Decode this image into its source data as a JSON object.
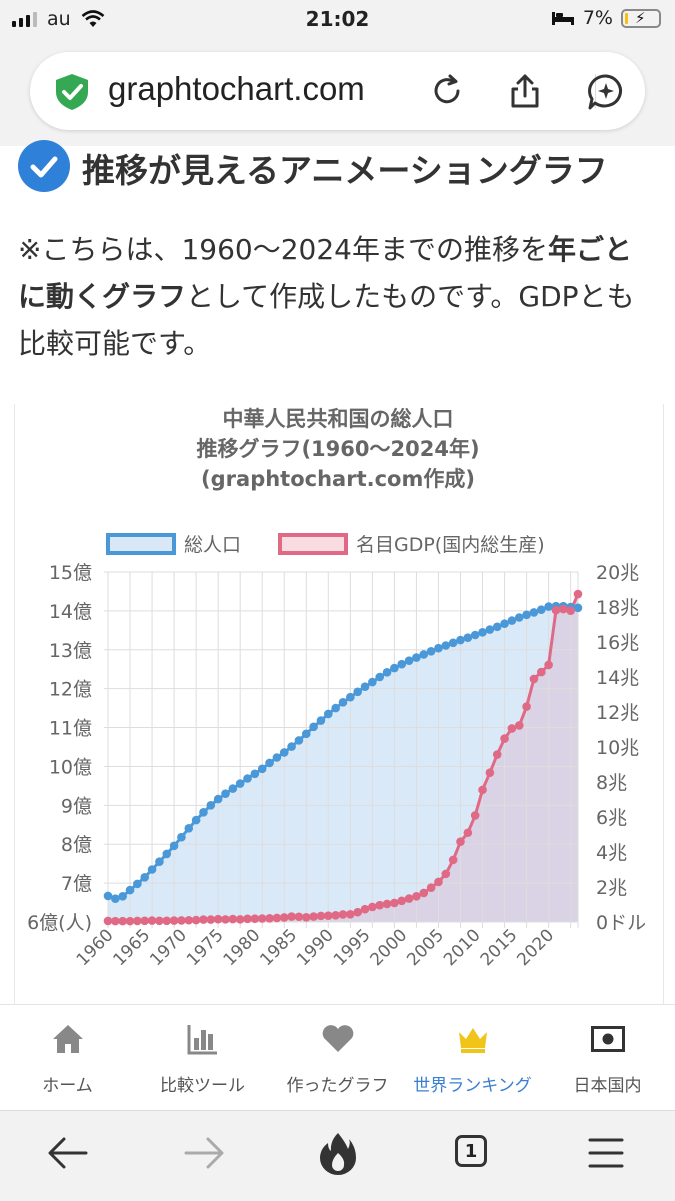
{
  "status_bar": {
    "carrier": "au",
    "time": "21:02",
    "battery": "7%",
    "battery_level": 0.07
  },
  "address_bar": {
    "url": "graphtochart.com",
    "security_icon": "shield-check-icon",
    "icons": [
      "reload-icon",
      "share-icon",
      "assistant-icon"
    ]
  },
  "article": {
    "heading": "推移が見えるアニメーショングラフ",
    "para": {
      "part1": "※こちらは、1960〜2024年までの推移を",
      "bold1": "年ごとに動くグラフ",
      "part2": "として作成したものです。GDPとも比較可能です。"
    }
  },
  "chart_data": {
    "type": "line",
    "title": [
      "中華人民共和国の総人口",
      "推移グラフ(1960〜2024年)",
      "(graphtochart.com作成)"
    ],
    "x": [
      1960,
      1961,
      1962,
      1963,
      1964,
      1965,
      1966,
      1967,
      1968,
      1969,
      1970,
      1971,
      1972,
      1973,
      1974,
      1975,
      1976,
      1977,
      1978,
      1979,
      1980,
      1981,
      1982,
      1983,
      1984,
      1985,
      1986,
      1987,
      1988,
      1989,
      1990,
      1991,
      1992,
      1993,
      1994,
      1995,
      1996,
      1997,
      1998,
      1999,
      2000,
      2001,
      2002,
      2003,
      2004,
      2005,
      2006,
      2007,
      2008,
      2009,
      2010,
      2011,
      2012,
      2013,
      2014,
      2015,
      2016,
      2017,
      2018,
      2019,
      2020,
      2021,
      2022,
      2023,
      2024
    ],
    "x_tick_labels": [
      "1960",
      "1965",
      "1970",
      "1975",
      "1980",
      "1985",
      "1990",
      "1995",
      "2000",
      "2005",
      "2010",
      "2015",
      "2020"
    ],
    "y_left": {
      "ticks": [
        "6億(人)",
        "7億",
        "8億",
        "9億",
        "10億",
        "11億",
        "12億",
        "13億",
        "14億",
        "15億"
      ],
      "range": [
        6,
        15
      ],
      "unit": "億"
    },
    "y_right": {
      "ticks": [
        "0ドル",
        "2兆",
        "4兆",
        "6兆",
        "8兆",
        "10兆",
        "12兆",
        "14兆",
        "16兆",
        "18兆",
        "20兆"
      ],
      "range": [
        0,
        20
      ],
      "unit": "兆"
    },
    "series": [
      {
        "name": "総人口",
        "axis": "left",
        "color": "#4a98d8",
        "fill": "#d8e8f8",
        "values": [
          6.67,
          6.6,
          6.66,
          6.82,
          6.98,
          7.15,
          7.35,
          7.55,
          7.75,
          7.96,
          8.18,
          8.41,
          8.62,
          8.82,
          9.0,
          9.16,
          9.3,
          9.43,
          9.56,
          9.69,
          9.81,
          9.94,
          10.09,
          10.23,
          10.36,
          10.51,
          10.67,
          10.84,
          11.02,
          11.18,
          11.35,
          11.5,
          11.65,
          11.78,
          11.92,
          12.05,
          12.17,
          12.3,
          12.42,
          12.53,
          12.63,
          12.72,
          12.8,
          12.88,
          12.96,
          13.04,
          13.11,
          13.18,
          13.25,
          13.31,
          13.38,
          13.45,
          13.52,
          13.59,
          13.67,
          13.75,
          13.83,
          13.9,
          13.96,
          14.03,
          14.11,
          14.12,
          14.12,
          14.1,
          14.08
        ]
      },
      {
        "name": "名目GDP(国内総生産)",
        "axis": "right",
        "color": "#e06a85",
        "fill": "#d9cfe2",
        "values": [
          0.06,
          0.05,
          0.05,
          0.05,
          0.06,
          0.07,
          0.08,
          0.07,
          0.07,
          0.08,
          0.09,
          0.1,
          0.11,
          0.14,
          0.14,
          0.16,
          0.15,
          0.17,
          0.15,
          0.18,
          0.19,
          0.2,
          0.21,
          0.23,
          0.26,
          0.31,
          0.3,
          0.27,
          0.31,
          0.35,
          0.36,
          0.38,
          0.43,
          0.44,
          0.56,
          0.73,
          0.86,
          0.96,
          1.03,
          1.09,
          1.21,
          1.34,
          1.47,
          1.66,
          1.96,
          2.29,
          2.75,
          3.55,
          4.59,
          5.1,
          6.09,
          7.55,
          8.53,
          9.57,
          10.48,
          11.06,
          11.23,
          12.31,
          13.89,
          14.28,
          14.69,
          17.82,
          17.88,
          17.79,
          18.74
        ]
      }
    ],
    "grid": true,
    "legend_position": "top"
  },
  "bottom_nav": {
    "items": [
      {
        "label": "ホーム",
        "icon": "home-icon"
      },
      {
        "label": "比較ツール",
        "icon": "bar-chart-icon"
      },
      {
        "label": "作ったグラフ",
        "icon": "heart-icon"
      },
      {
        "label": "世界ランキング",
        "icon": "crown-icon",
        "active": true
      },
      {
        "label": "日本国内",
        "icon": "japan-flag-icon"
      }
    ],
    "active_color": "#3a7fd0"
  },
  "browser_toolbar": {
    "tab_count": "1",
    "icons": [
      "back-icon",
      "forward-icon",
      "fire-icon",
      "tabs-icon",
      "menu-icon"
    ]
  }
}
